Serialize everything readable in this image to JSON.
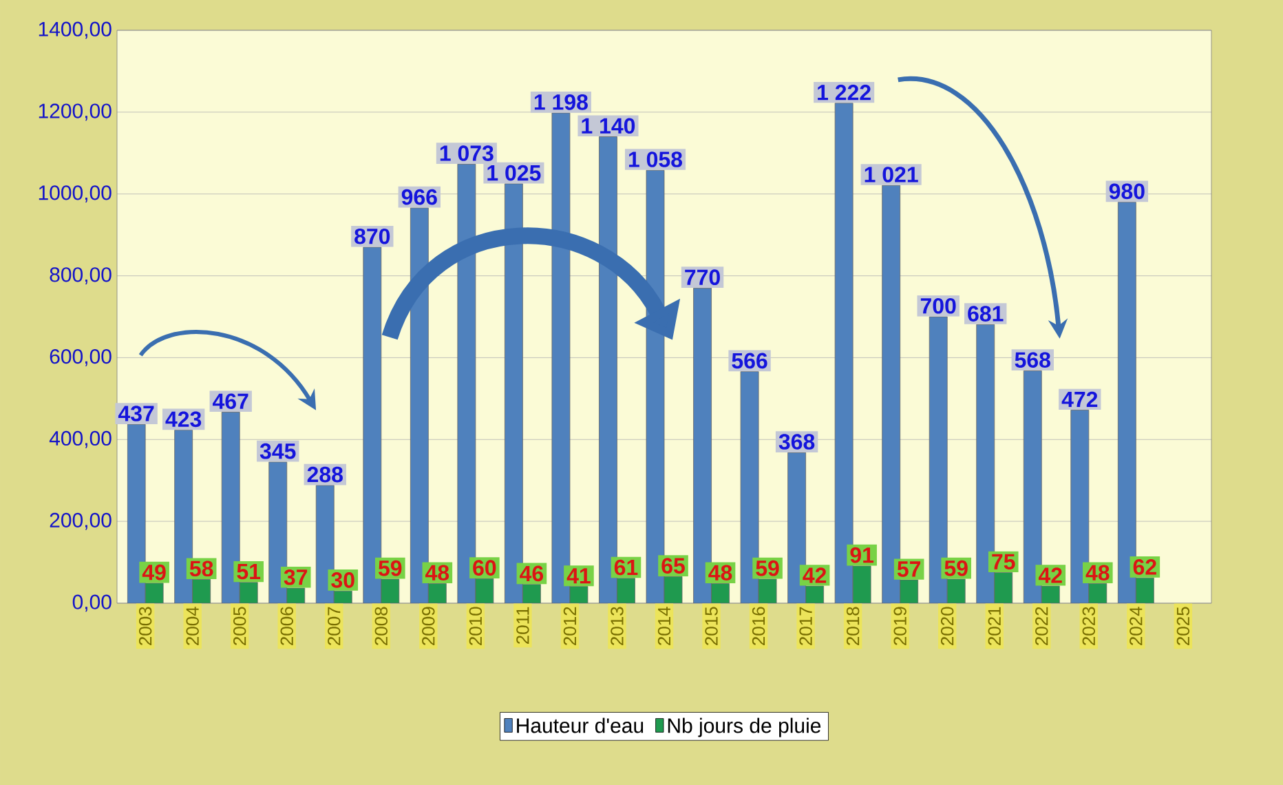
{
  "chart_data": {
    "type": "bar",
    "categories": [
      "2003",
      "2004",
      "2005",
      "2006",
      "2007",
      "2008",
      "2009",
      "2010",
      "2011",
      "2012",
      "2013",
      "2014",
      "2015",
      "2016",
      "2017",
      "2018",
      "2019",
      "2020",
      "2021",
      "2022",
      "2023",
      "2024",
      "2025"
    ],
    "series": [
      {
        "name": "Hauteur d'eau",
        "color": "#4f81bd",
        "values": [
          437,
          423,
          467,
          345,
          288,
          870,
          966,
          1073,
          1025,
          1198,
          1140,
          1058,
          770,
          566,
          368,
          1222,
          1021,
          700,
          681,
          568,
          472,
          980,
          null
        ],
        "value_labels": [
          "437",
          "423",
          "467",
          "345",
          "288",
          "870",
          "966",
          "1 073",
          "1 025",
          "1 198",
          "1 140",
          "1 058",
          "770",
          "566",
          "368",
          "1 222",
          "1 021",
          "700",
          "681",
          "568",
          "472",
          "980",
          null
        ]
      },
      {
        "name": "Nb jours de pluie",
        "color": "#1f9a4f",
        "values": [
          49,
          58,
          51,
          37,
          30,
          59,
          48,
          60,
          46,
          41,
          61,
          65,
          48,
          59,
          42,
          91,
          57,
          59,
          75,
          42,
          48,
          62,
          null
        ],
        "value_labels": [
          "49",
          "58",
          "51",
          "37",
          "30",
          "59",
          "48",
          "60",
          "46",
          "41",
          "61",
          "65",
          "48",
          "59",
          "42",
          "91",
          "57",
          "59",
          "75",
          "42",
          "48",
          "62",
          null
        ]
      }
    ],
    "ylim": [
      0,
      1400
    ],
    "yticks": [
      {
        "value": 0,
        "label": "0,00"
      },
      {
        "value": 200,
        "label": "200,00"
      },
      {
        "value": 400,
        "label": "400,00"
      },
      {
        "value": 600,
        "label": "600,00"
      },
      {
        "value": 800,
        "label": "800,00"
      },
      {
        "value": 1000,
        "label": "1000,00"
      },
      {
        "value": 1200,
        "label": "1200,00"
      },
      {
        "value": 1400,
        "label": "1400,00"
      }
    ],
    "grid": "y",
    "legend": "bottom"
  }
}
